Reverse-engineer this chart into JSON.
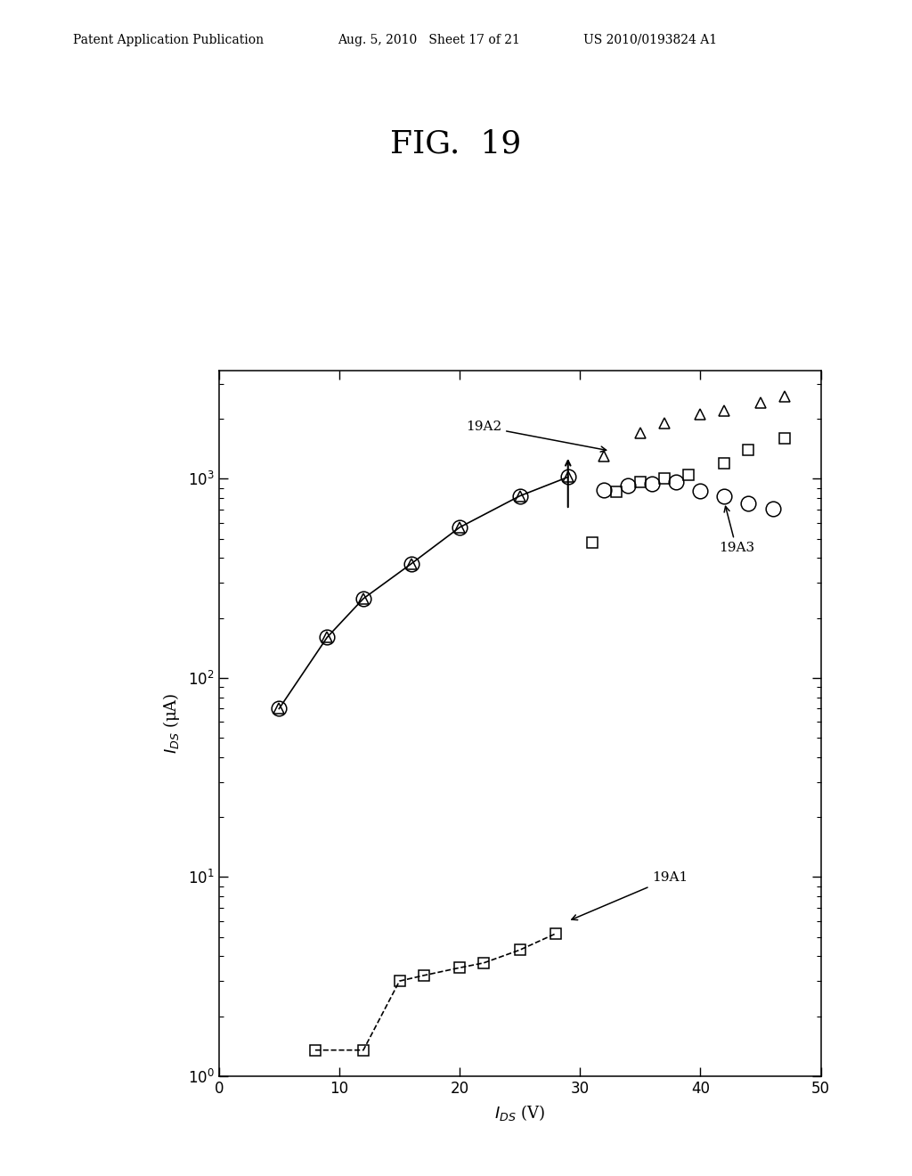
{
  "title": "FIG.  19",
  "header_left": "Patent Application Publication",
  "header_mid": "Aug. 5, 2010   Sheet 17 of 21",
  "header_right": "US 2010/0193824 A1",
  "xlabel": "$I_{DS}$ (V)",
  "ylabel": "$I_{DS}$ (μA)",
  "xlim": [
    0,
    50
  ],
  "ylim_log": [
    1.0,
    3500
  ],
  "xticks": [
    0,
    10,
    20,
    30,
    40,
    50
  ],
  "pre_x": [
    5,
    9,
    12,
    16,
    20,
    25,
    29
  ],
  "pre_y": [
    70,
    160,
    250,
    375,
    570,
    820,
    1020
  ],
  "tri_only_x": [
    32,
    35,
    37,
    40,
    42,
    45,
    47
  ],
  "tri_only_y": [
    1300,
    1700,
    1900,
    2100,
    2200,
    2400,
    2600
  ],
  "sq3_x": [
    31,
    33,
    35,
    37,
    39,
    42,
    44,
    47
  ],
  "sq3_y": [
    480,
    860,
    960,
    1000,
    1050,
    1200,
    1400,
    1600
  ],
  "c3_x": [
    32,
    34,
    36,
    38,
    40,
    42,
    44,
    46
  ],
  "c3_y": [
    880,
    920,
    940,
    960,
    870,
    820,
    750,
    710
  ],
  "sq1_x": [
    8,
    12,
    15,
    17,
    20,
    22,
    25,
    28
  ],
  "sq1_y": [
    1.35,
    1.35,
    3.0,
    3.2,
    3.5,
    3.7,
    4.3,
    5.2
  ],
  "background_color": "#ffffff"
}
